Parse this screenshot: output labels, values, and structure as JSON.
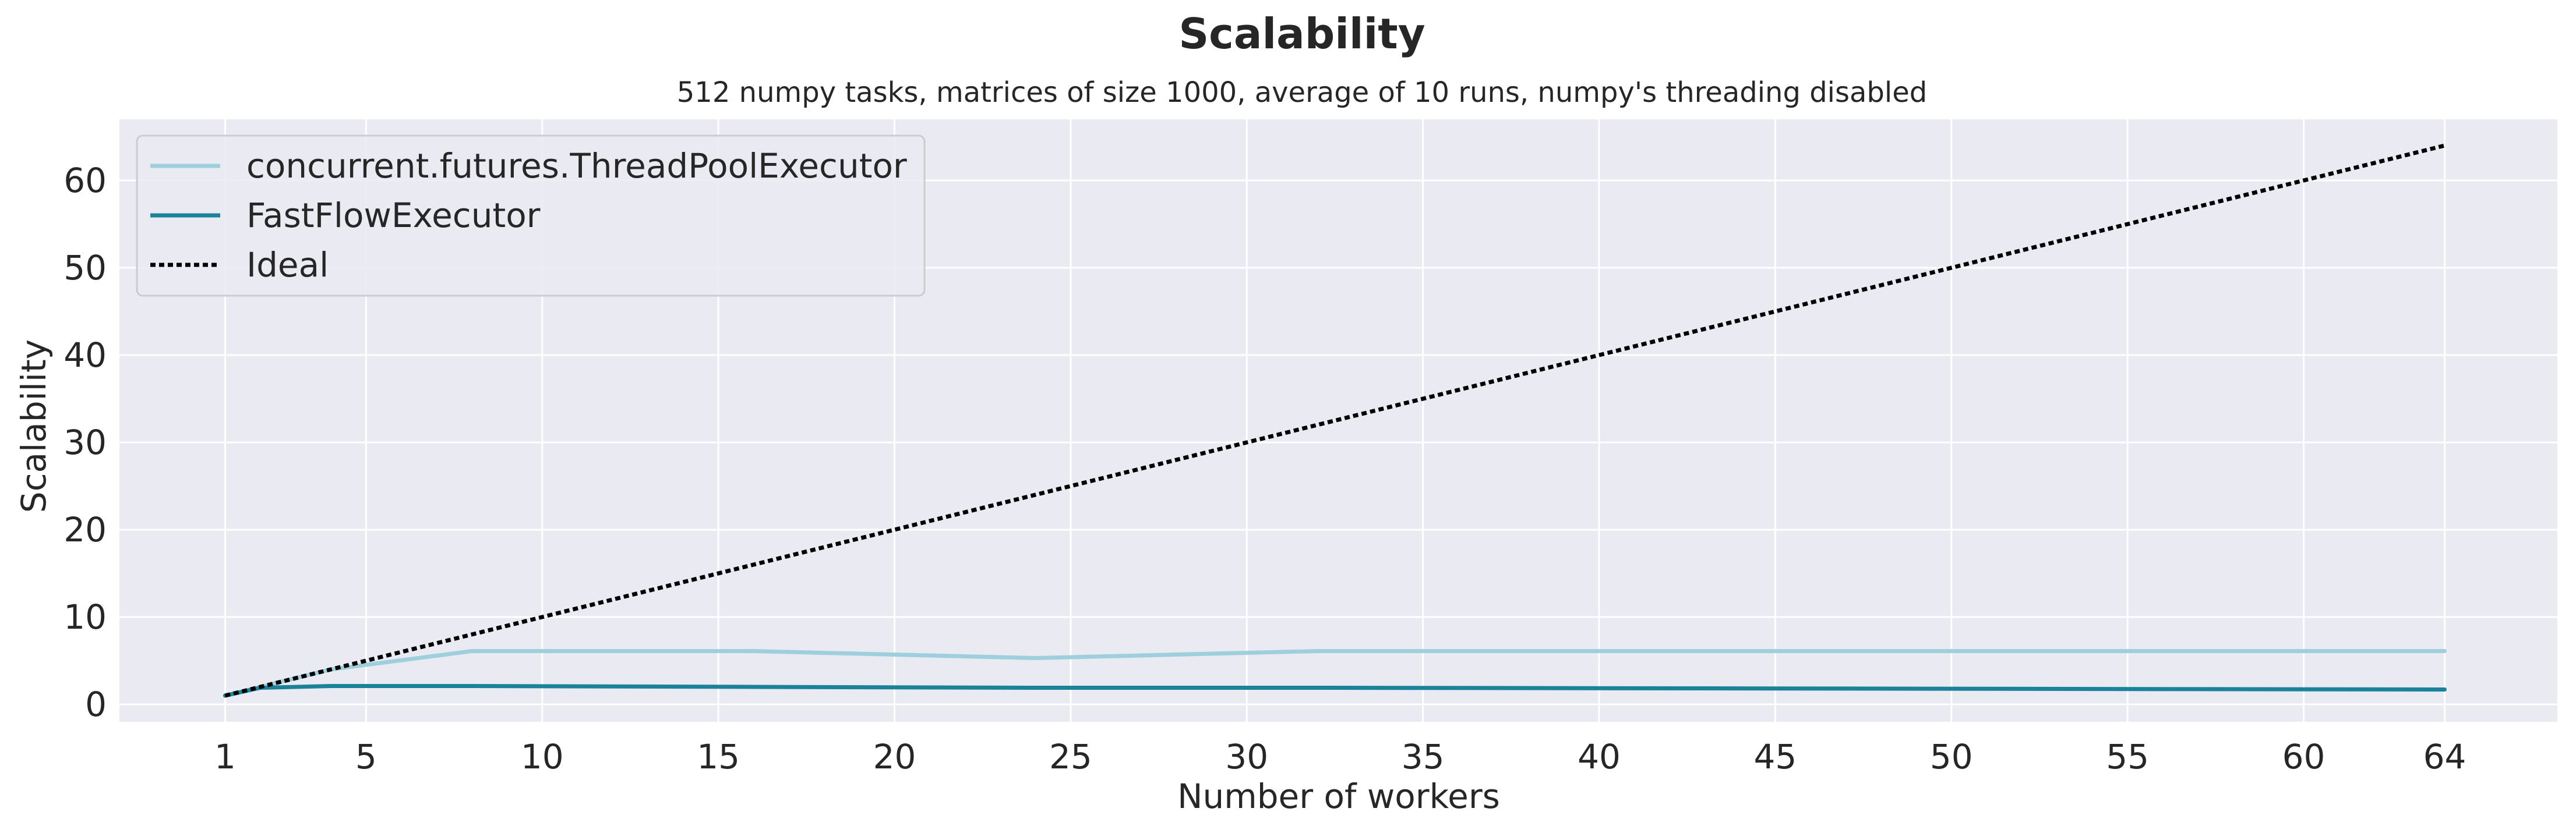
{
  "chart_data": {
    "type": "line",
    "title": "Scalability",
    "subtitle": "512 numpy tasks, matrices of size 1000, average of 10 runs, numpy's threading disabled",
    "xlabel": "Number of workers",
    "ylabel": "Scalability",
    "xticks": [
      1,
      5,
      10,
      15,
      20,
      25,
      30,
      35,
      40,
      45,
      50,
      55,
      60,
      64
    ],
    "yticks": [
      0,
      10,
      20,
      30,
      40,
      50,
      60
    ],
    "xlim": [
      -2,
      67.2
    ],
    "ylim": [
      -2,
      67
    ],
    "grid": true,
    "legend_position": "top-left",
    "series": [
      {
        "name": "concurrent.futures.ThreadPoolExecutor",
        "color": "#9ecfdc",
        "style": "solid",
        "x": [
          1,
          2,
          4,
          8,
          16,
          24,
          32,
          64
        ],
        "y": [
          1.0,
          2.0,
          4.0,
          6.1,
          6.1,
          5.3,
          6.1,
          6.1
        ]
      },
      {
        "name": "FastFlowExecutor",
        "color": "#1a8399",
        "style": "solid",
        "x": [
          1,
          2,
          4,
          8,
          16,
          24,
          32,
          64
        ],
        "y": [
          1.0,
          1.9,
          2.1,
          2.1,
          2.0,
          1.9,
          1.9,
          1.7
        ]
      },
      {
        "name": "Ideal",
        "color": "#000000",
        "style": "dotted",
        "x": [
          1,
          64
        ],
        "y": [
          1,
          64
        ]
      }
    ]
  }
}
